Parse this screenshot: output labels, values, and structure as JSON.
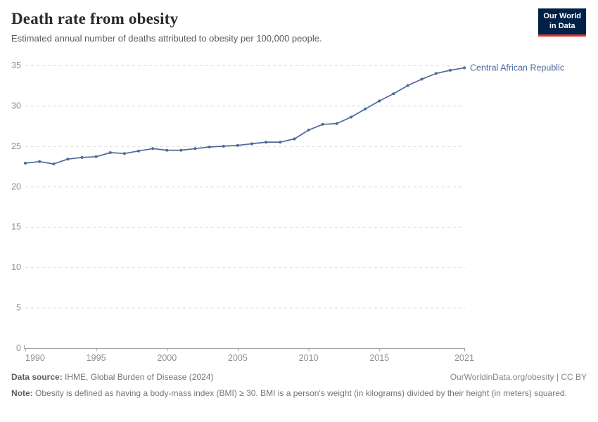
{
  "header": {
    "title": "Death rate from obesity",
    "subtitle": "Estimated annual number of deaths attributed to obesity per 100,000 people.",
    "logo": {
      "line1": "Our World",
      "line2": "in Data",
      "bg_color": "#002147",
      "accent_color": "#dc3a2c"
    }
  },
  "chart_data": {
    "type": "line",
    "title": "Death rate from obesity",
    "entity_label": "Central African Republic",
    "x": [
      1990,
      1991,
      1992,
      1993,
      1994,
      1995,
      1996,
      1997,
      1998,
      1999,
      2000,
      2001,
      2002,
      2003,
      2004,
      2005,
      2006,
      2007,
      2008,
      2009,
      2010,
      2011,
      2012,
      2013,
      2014,
      2015,
      2016,
      2017,
      2018,
      2019,
      2020,
      2021
    ],
    "series": [
      {
        "name": "Central African Republic",
        "values": [
          22.9,
          23.1,
          22.8,
          23.4,
          23.6,
          23.7,
          24.2,
          24.1,
          24.4,
          24.7,
          24.5,
          24.5,
          24.7,
          24.9,
          25.0,
          25.1,
          25.3,
          25.5,
          25.5,
          25.9,
          27.0,
          27.7,
          27.8,
          28.6,
          29.6,
          30.6,
          31.5,
          32.5,
          33.3,
          34.0,
          34.4,
          34.7
        ]
      }
    ],
    "xlabel": "",
    "ylabel": "",
    "xlim": [
      1990,
      2021
    ],
    "ylim": [
      0,
      35
    ],
    "xticks": [
      1990,
      1995,
      2000,
      2005,
      2010,
      2015,
      2021
    ],
    "yticks": [
      0,
      5,
      10,
      15,
      20,
      25,
      30,
      35
    ],
    "grid": "horizontal-dashed",
    "line_color": "#4c6a9c",
    "marker": "dot",
    "axis_text_color": "#8f8f8f",
    "grid_color": "#dedede",
    "axis_line_color": "#a3a3a3"
  },
  "footer": {
    "datasource_label": "Data source:",
    "datasource": "IHME, Global Burden of Disease (2024)",
    "link": "OurWorldinData.org/obesity | CC BY",
    "note_label": "Note:",
    "note": "Obesity is defined as having a body-mass index (BMI) ≥ 30. BMI is a person's weight (in kilograms) divided by their height (in meters) squared."
  }
}
